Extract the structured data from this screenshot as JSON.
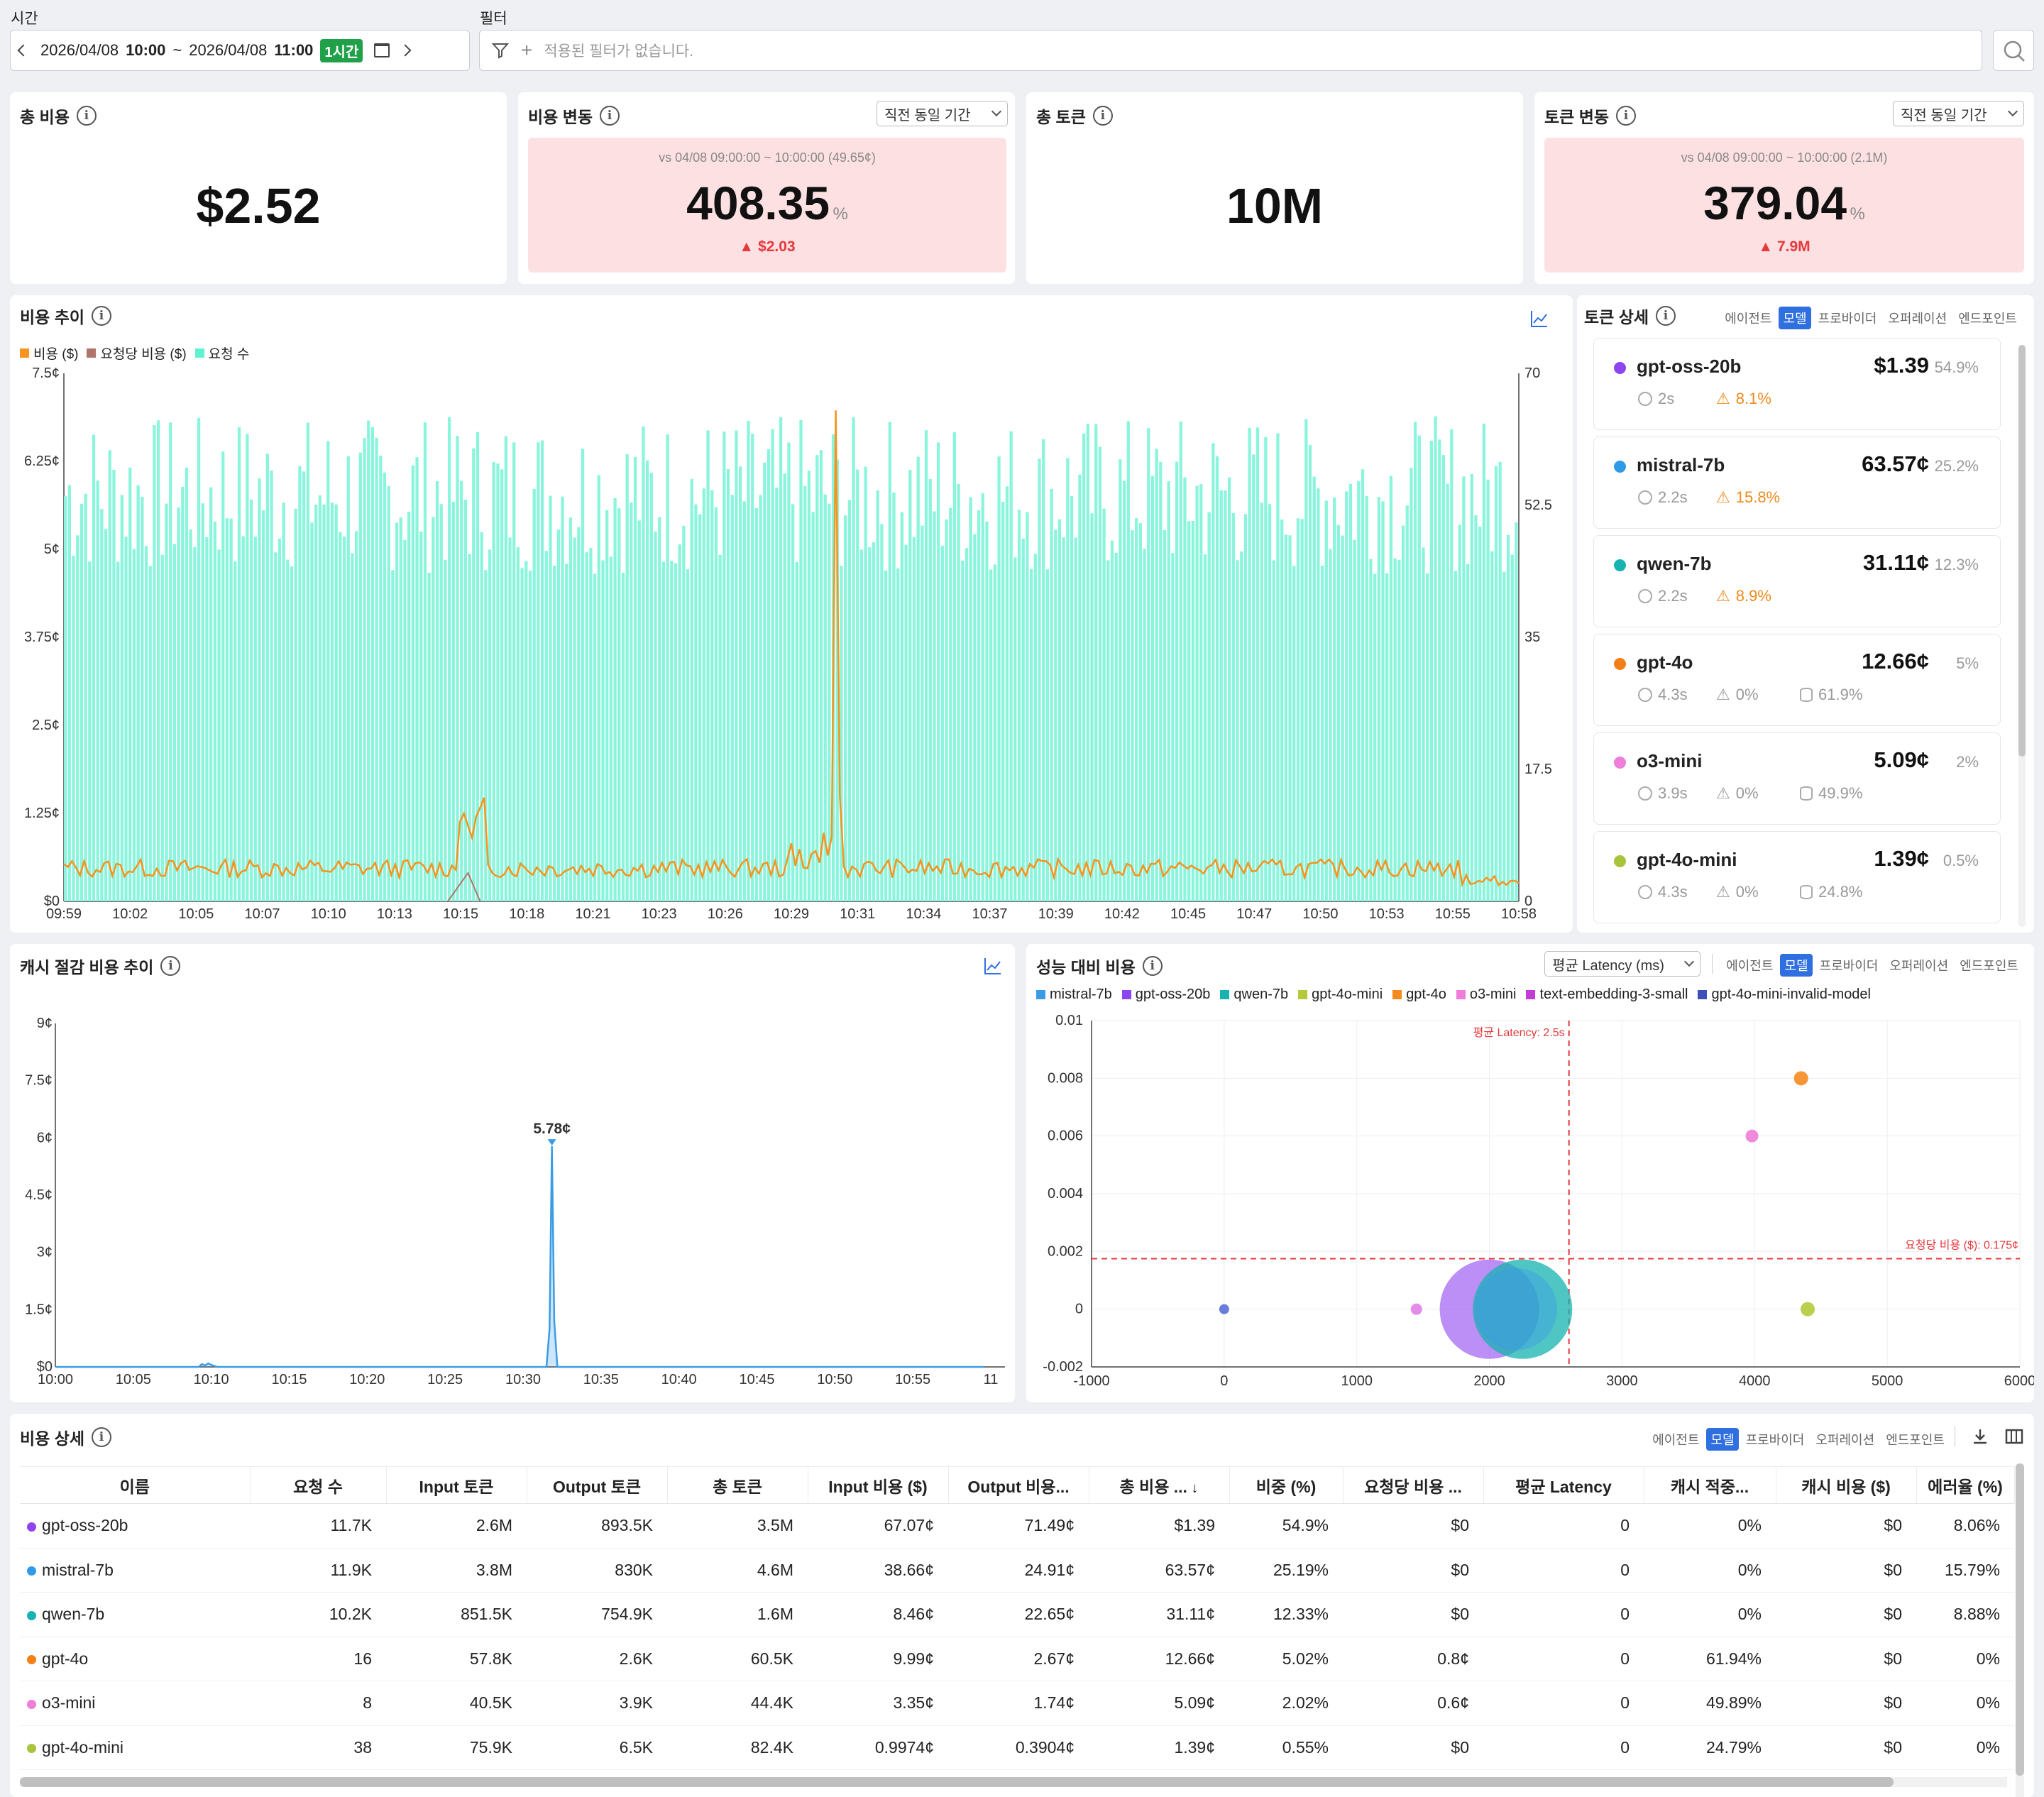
{
  "header": {
    "time_label": "시간",
    "filter_label": "필터",
    "start_date": "2026/04/08",
    "start_time": "10:00",
    "tilde": "~",
    "end_date": "2026/04/08",
    "end_time": "11:00",
    "range_badge": "1시간",
    "filter_placeholder": "적용된 필터가 없습니다."
  },
  "kpis": {
    "total_cost": {
      "title": "총 비용",
      "value": "$2.52"
    },
    "cost_change": {
      "title": "비용 변동",
      "dropdown": "직전 동일 기간",
      "compare": "vs 04/08 09:00:00 ~ 10:00:00 (49.65¢)",
      "value": "408.35",
      "unit": "%",
      "delta": "$2.03"
    },
    "total_tokens": {
      "title": "총 토큰",
      "value": "10M"
    },
    "token_change": {
      "title": "토큰 변동",
      "dropdown": "직전 동일 기간",
      "compare": "vs 04/08 09:00:00 ~ 10:00:00 (2.1M)",
      "value": "379.04",
      "unit": "%",
      "delta": "7.9M"
    }
  },
  "colors": {
    "cost": "#f7931e",
    "per_request": "#b0756a",
    "requests": "#8af5dc",
    "cache": "#3a9be6",
    "warn": "#f08a1c",
    "red": "#e5383b",
    "accent": "#2f6fe0"
  },
  "cost_trend": {
    "title": "비용 추이",
    "legend": [
      "비용 ($)",
      "요청당 비용 ($)",
      "요청 수"
    ],
    "y_left_ticks": [
      "7.5¢",
      "6.25¢",
      "5¢",
      "3.75¢",
      "2.5¢",
      "1.25¢",
      "$0"
    ],
    "y_right_ticks": [
      "70",
      "52.5",
      "35",
      "17.5",
      "0"
    ],
    "x_ticks": [
      "09:59",
      "10:02",
      "10:05",
      "10:07",
      "10:10",
      "10:13",
      "10:15",
      "10:18",
      "10:21",
      "10:23",
      "10:26",
      "10:29",
      "10:31",
      "10:34",
      "10:37",
      "10:39",
      "10:42",
      "10:45",
      "10:47",
      "10:50",
      "10:53",
      "10:55",
      "10:58"
    ]
  },
  "token_detail": {
    "title": "토큰 상세",
    "tabs": [
      "에이전트",
      "모델",
      "프로바이더",
      "오퍼레이션",
      "엔드포인트"
    ],
    "active_tab": "모델",
    "items": [
      {
        "name": "gpt-oss-20b",
        "color": "#8e44f0",
        "cost": "$1.39",
        "pct": "54.9%",
        "latency": "2s",
        "error": "8.1%",
        "cache": ""
      },
      {
        "name": "mistral-7b",
        "color": "#2f9be8",
        "cost": "63.57¢",
        "pct": "25.2%",
        "latency": "2.2s",
        "error": "15.8%",
        "cache": ""
      },
      {
        "name": "qwen-7b",
        "color": "#16b3b0",
        "cost": "31.11¢",
        "pct": "12.3%",
        "latency": "2.2s",
        "error": "8.9%",
        "cache": ""
      },
      {
        "name": "gpt-4o",
        "color": "#f57f17",
        "cost": "12.66¢",
        "pct": "5%",
        "latency": "4.3s",
        "error": "0%",
        "cache": "61.9%"
      },
      {
        "name": "o3-mini",
        "color": "#ee7ddb",
        "cost": "5.09¢",
        "pct": "2%",
        "latency": "3.9s",
        "error": "0%",
        "cache": "49.9%"
      },
      {
        "name": "gpt-4o-mini",
        "color": "#a8c43a",
        "cost": "1.39¢",
        "pct": "0.5%",
        "latency": "4.3s",
        "error": "0%",
        "cache": "24.8%"
      }
    ]
  },
  "cache_trend": {
    "title": "캐시 절감 비용 추이",
    "peak_label": "5.78¢",
    "y_ticks": [
      "9¢",
      "7.5¢",
      "6¢",
      "4.5¢",
      "3¢",
      "1.5¢",
      "$0"
    ],
    "x_ticks": [
      "10:00",
      "10:05",
      "10:10",
      "10:15",
      "10:20",
      "10:25",
      "10:30",
      "10:35",
      "10:40",
      "10:45",
      "10:50",
      "10:55",
      "11"
    ]
  },
  "perf_cost": {
    "title": "성능 대비 비용",
    "dropdown": "평균 Latency (ms)",
    "tabs": [
      "에이전트",
      "모델",
      "프로바이더",
      "오퍼레이션",
      "엔드포인트"
    ],
    "active_tab": "모델",
    "legend": [
      {
        "name": "mistral-7b",
        "color": "#3a9be6"
      },
      {
        "name": "gpt-oss-20b",
        "color": "#8e44f0"
      },
      {
        "name": "qwen-7b",
        "color": "#16b3b0"
      },
      {
        "name": "gpt-4o-mini",
        "color": "#b5c93a"
      },
      {
        "name": "gpt-4o",
        "color": "#f58b1e"
      },
      {
        "name": "o3-mini",
        "color": "#ee7ddb"
      },
      {
        "name": "text-embedding-3-small",
        "color": "#c43cd8"
      },
      {
        "name": "gpt-4o-mini-invalid-model",
        "color": "#3f4fb8"
      }
    ],
    "y_ticks": [
      "0.01",
      "0.008",
      "0.006",
      "0.004",
      "0.002",
      "0",
      "-0.002"
    ],
    "x_ticks": [
      "-1000",
      "0",
      "1000",
      "2000",
      "3000",
      "4000",
      "5000",
      "6000"
    ],
    "avg_latency_label": "평균 Latency: 2.5s",
    "avg_cost_label": "요청당 비용 ($): 0.175¢"
  },
  "cost_detail": {
    "title": "비용 상세",
    "tabs": [
      "에이전트",
      "모델",
      "프로바이더",
      "오퍼레이션",
      "엔드포인트"
    ],
    "active_tab": "모델",
    "columns": [
      "이름",
      "요청 수",
      "Input 토큰",
      "Output 토큰",
      "총 토큰",
      "Input 비용 ($)",
      "Output 비용...",
      "총 비용 ...",
      "비중 (%)",
      "요청당 비용 ...",
      "평균 Latency",
      "캐시 적중...",
      "캐시 비용 ($)",
      "에러율 (%)"
    ],
    "rows": [
      {
        "name": "gpt-oss-20b",
        "color": "#8e44f0",
        "cells": [
          "11.7K",
          "2.6M",
          "893.5K",
          "3.5M",
          "67.07¢",
          "71.49¢",
          "$1.39",
          "54.9%",
          "$0",
          "0",
          "0%",
          "$0",
          "8.06%"
        ]
      },
      {
        "name": "mistral-7b",
        "color": "#2f9be8",
        "cells": [
          "11.9K",
          "3.8M",
          "830K",
          "4.6M",
          "38.66¢",
          "24.91¢",
          "63.57¢",
          "25.19%",
          "$0",
          "0",
          "0%",
          "$0",
          "15.79%"
        ]
      },
      {
        "name": "qwen-7b",
        "color": "#16b3b0",
        "cells": [
          "10.2K",
          "851.5K",
          "754.9K",
          "1.6M",
          "8.46¢",
          "22.65¢",
          "31.11¢",
          "12.33%",
          "$0",
          "0",
          "0%",
          "$0",
          "8.88%"
        ]
      },
      {
        "name": "gpt-4o",
        "color": "#f57f17",
        "cells": [
          "16",
          "57.8K",
          "2.6K",
          "60.5K",
          "9.99¢",
          "2.67¢",
          "12.66¢",
          "5.02%",
          "0.8¢",
          "0",
          "61.94%",
          "$0",
          "0%"
        ]
      },
      {
        "name": "o3-mini",
        "color": "#ee7ddb",
        "cells": [
          "8",
          "40.5K",
          "3.9K",
          "44.4K",
          "3.35¢",
          "1.74¢",
          "5.09¢",
          "2.02%",
          "0.6¢",
          "0",
          "49.89%",
          "$0",
          "0%"
        ]
      },
      {
        "name": "gpt-4o-mini",
        "color": "#a8c43a",
        "cells": [
          "38",
          "75.9K",
          "6.5K",
          "82.4K",
          "0.9974¢",
          "0.3904¢",
          "1.39¢",
          "0.55%",
          "$0",
          "0",
          "24.79%",
          "$0",
          "0%"
        ]
      }
    ]
  }
}
